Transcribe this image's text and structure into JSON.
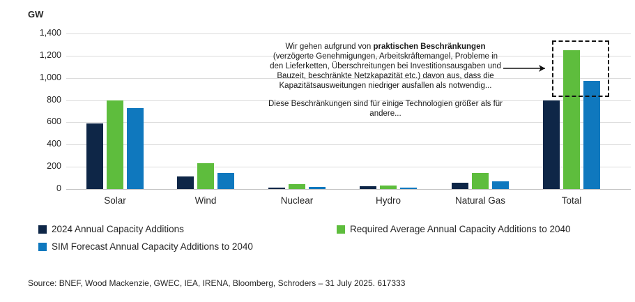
{
  "chart_data": {
    "type": "bar",
    "unit_label": "GW",
    "categories": [
      "Solar",
      "Wind",
      "Nuclear",
      "Hydro",
      "Natural Gas",
      "Total"
    ],
    "series": [
      {
        "name": "2024 Annual Capacity Additions",
        "color": "#0e2647",
        "values": [
          590,
          115,
          10,
          25,
          55,
          800
        ]
      },
      {
        "name": "Required Average Annual Capacity Additions to 2040",
        "color": "#5ebd3d",
        "values": [
          800,
          230,
          45,
          30,
          145,
          1250
        ]
      },
      {
        "name": "SIM Forecast Annual Capacity Additions to 2040",
        "color": "#0f78be",
        "values": [
          730,
          145,
          20,
          15,
          70,
          975
        ]
      }
    ],
    "ylim": [
      0,
      1400
    ],
    "ytick_interval": 200,
    "ytick_labels": [
      "0",
      "200",
      "400",
      "600",
      "800",
      "1,000",
      "1,200",
      "1,400"
    ],
    "grid": "horizontal",
    "legend_position": "bottom",
    "highlight": "dashed box with arrow around top of Total green and blue bars"
  },
  "annotation": {
    "p1_before": "Wir gehen aufgrund von ",
    "p1_bold": "praktischen Beschränkungen",
    "p1_after": " (verzögerte Genehmigungen, Arbeitskräftemangel, Probleme in den Lieferketten, Überschreitungen bei Investitionsausgaben und Bauzeit, beschränkte Netzkapazität etc.)  davon aus, dass die Kapazitätsausweitungen niedriger ausfallen als notwendig...",
    "p2": "Diese Beschränkungen sind für einige Technologien größer als für andere..."
  },
  "legend": {
    "items": [
      {
        "label": "2024 Annual Capacity Additions",
        "color": "#0e2647"
      },
      {
        "label": "Required Average Annual Capacity Additions to 2040",
        "color": "#5ebd3d"
      },
      {
        "label": "SIM Forecast Annual Capacity Additions to 2040",
        "color": "#0f78be"
      }
    ]
  },
  "source": "Source: BNEF, Wood Mackenzie, GWEC, IEA, IRENA, Bloomberg, Schroders – 31 July 2025. 617333"
}
